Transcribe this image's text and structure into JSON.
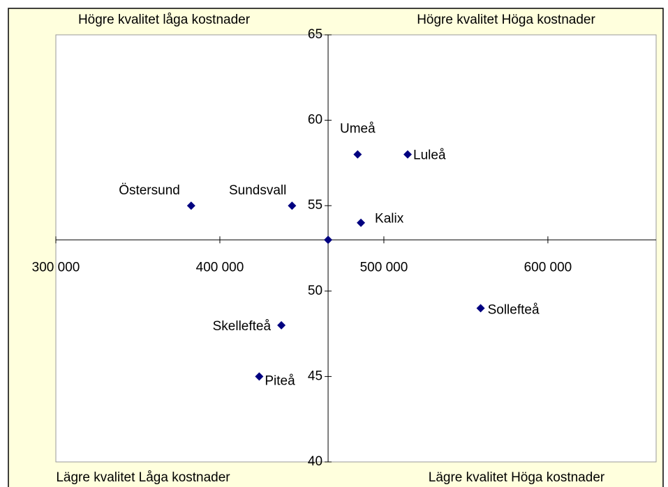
{
  "chart_data": {
    "type": "scatter",
    "x": [
      382500,
      444000,
      484000,
      514500,
      486000,
      466000,
      437500,
      424000,
      559000
    ],
    "values": [
      55,
      55,
      58,
      58,
      54,
      53,
      48,
      45,
      49
    ],
    "point_labels": [
      "Östersund",
      "Sundsvall",
      "Umeå",
      "Luleå",
      "Kalix",
      null,
      "Skellefteå",
      "Piteå",
      "Sollefteå"
    ],
    "color": "#000080",
    "xlim": [
      300000,
      666000
    ],
    "xticks": [
      {
        "value": 300000,
        "label": "300 000"
      },
      {
        "value": 400000,
        "label": "400 000"
      },
      {
        "value": 500000,
        "label": "500 000"
      },
      {
        "value": 600000,
        "label": "600 000"
      }
    ],
    "ylim": [
      40,
      65
    ],
    "yticks": [
      40,
      45,
      50,
      55,
      60,
      65
    ],
    "x_axis_crosses_at": 53,
    "y_axis_crosses_at": 466000,
    "annotations": [
      "Högre kvalitet  låga kostnader",
      "Högre kvalitet Höga kostnader",
      "Lägre kvalitet Låga kostnader",
      "Lägre kvalitet Höga kostnader"
    ]
  }
}
